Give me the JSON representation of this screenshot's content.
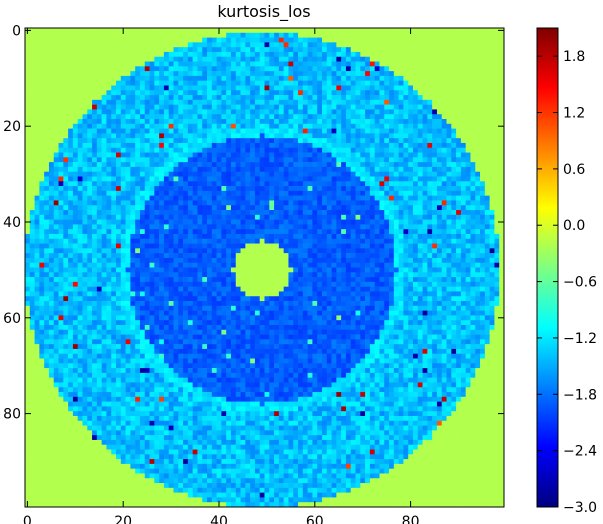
{
  "chart_data": {
    "type": "heatmap",
    "title": "kurtosis_los",
    "xlabel": "",
    "ylabel": "",
    "grid_size": [
      100,
      100
    ],
    "xlim": [
      0,
      99
    ],
    "ylim": [
      99,
      0
    ],
    "x_ticks": [
      "0",
      "20",
      "40",
      "60",
      "80"
    ],
    "y_ticks": [
      "0",
      "20",
      "40",
      "60",
      "80"
    ],
    "colormap": "jet",
    "colorbar": {
      "vmin": -3.0,
      "vmax": 2.1,
      "ticks": [
        "1.8",
        "1.2",
        "0.6",
        "0.0",
        "−0.6",
        "−1.2",
        "−1.8",
        "−2.4",
        "−3.0"
      ]
    },
    "structure": {
      "center": [
        49,
        50
      ],
      "background_value": -0.2,
      "outer_disk": {
        "radius": 49,
        "value": -1.4
      },
      "ring": {
        "radius": 29,
        "value": -1.2
      },
      "inner_disk": {
        "radius": 28,
        "value": -1.9
      },
      "center_spot": {
        "radius": 6,
        "value": -0.2
      }
    },
    "colors": {
      "background": "#a9f03f",
      "outer_disk": "#1aa0ff",
      "inner_disk": "#0a4cff",
      "ring": "#33ddee"
    }
  }
}
